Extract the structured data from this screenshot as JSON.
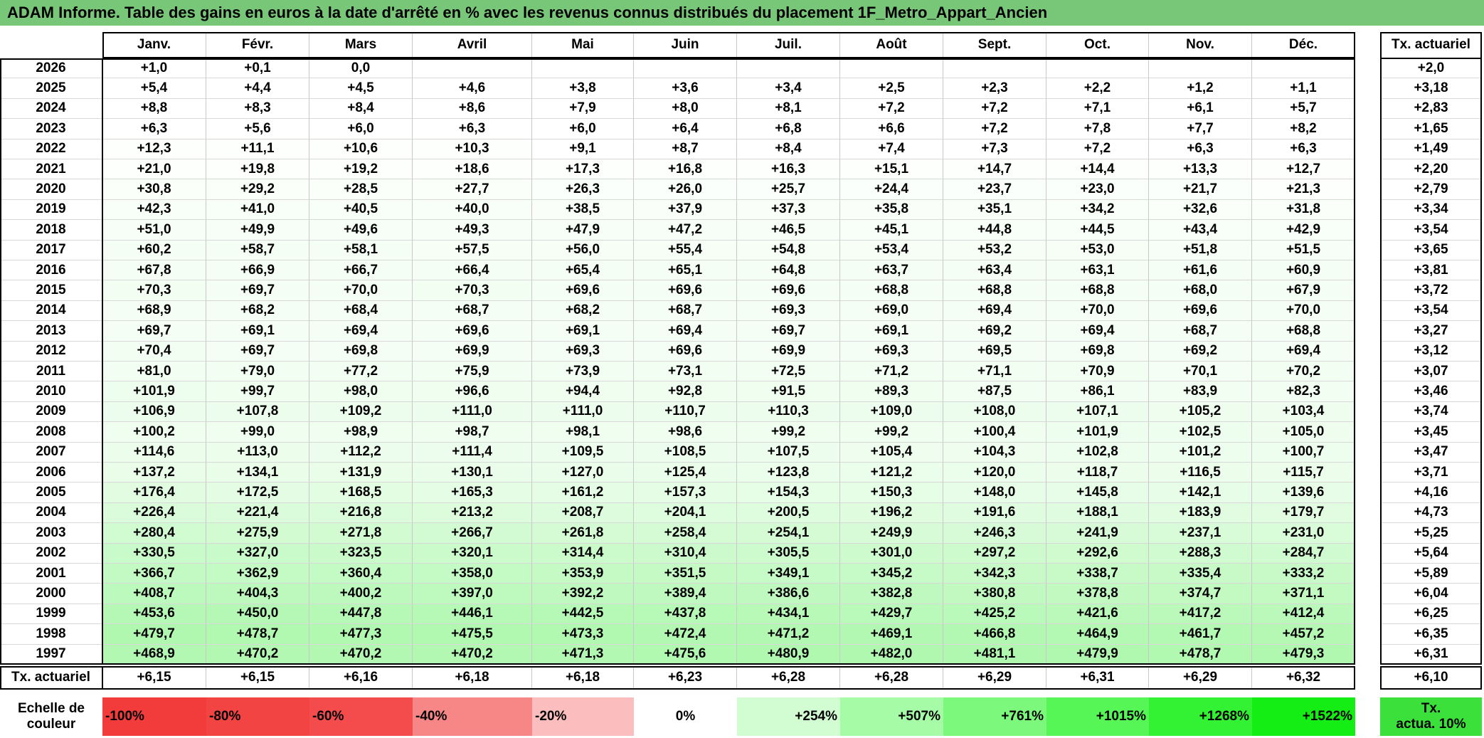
{
  "title": "ADAM Informe. Table des gains en euros à la date d'arrêté en % avec les revenus connus distribués du placement 1F_Metro_Appart_Ancien",
  "table": {
    "months": [
      "Janv.",
      "Févr.",
      "Mars",
      "Avril",
      "Mai",
      "Juin",
      "Juil.",
      "Août",
      "Sept.",
      "Oct.",
      "Nov.",
      "Déc."
    ],
    "tx_header": "Tx. actuariel",
    "rows": [
      {
        "year": "2026",
        "values": [
          "+1,0",
          "+0,1",
          "0,0"
        ],
        "tx": "+2,0"
      },
      {
        "year": "2025",
        "values": [
          "+5,4",
          "+4,4",
          "+4,5",
          "+4,6",
          "+3,8",
          "+3,6",
          "+3,4",
          "+2,5",
          "+2,3",
          "+2,2",
          "+1,2",
          "+1,1"
        ],
        "tx": "+3,18"
      },
      {
        "year": "2024",
        "values": [
          "+8,8",
          "+8,3",
          "+8,4",
          "+8,6",
          "+7,9",
          "+8,0",
          "+8,1",
          "+7,2",
          "+7,2",
          "+7,1",
          "+6,1",
          "+5,7"
        ],
        "tx": "+2,83"
      },
      {
        "year": "2023",
        "values": [
          "+6,3",
          "+5,6",
          "+6,0",
          "+6,3",
          "+6,0",
          "+6,4",
          "+6,8",
          "+6,6",
          "+7,2",
          "+7,8",
          "+7,7",
          "+8,2"
        ],
        "tx": "+1,65"
      },
      {
        "year": "2022",
        "values": [
          "+12,3",
          "+11,1",
          "+10,6",
          "+10,3",
          "+9,1",
          "+8,7",
          "+8,4",
          "+7,4",
          "+7,3",
          "+7,2",
          "+6,3",
          "+6,3"
        ],
        "tx": "+1,49"
      },
      {
        "year": "2021",
        "values": [
          "+21,0",
          "+19,8",
          "+19,2",
          "+18,6",
          "+17,3",
          "+16,8",
          "+16,3",
          "+15,1",
          "+14,7",
          "+14,4",
          "+13,3",
          "+12,7"
        ],
        "tx": "+2,20"
      },
      {
        "year": "2020",
        "values": [
          "+30,8",
          "+29,2",
          "+28,5",
          "+27,7",
          "+26,3",
          "+26,0",
          "+25,7",
          "+24,4",
          "+23,7",
          "+23,0",
          "+21,7",
          "+21,3"
        ],
        "tx": "+2,79"
      },
      {
        "year": "2019",
        "values": [
          "+42,3",
          "+41,0",
          "+40,5",
          "+40,0",
          "+38,5",
          "+37,9",
          "+37,3",
          "+35,8",
          "+35,1",
          "+34,2",
          "+32,6",
          "+31,8"
        ],
        "tx": "+3,34"
      },
      {
        "year": "2018",
        "values": [
          "+51,0",
          "+49,9",
          "+49,6",
          "+49,3",
          "+47,9",
          "+47,2",
          "+46,5",
          "+45,1",
          "+44,8",
          "+44,5",
          "+43,4",
          "+42,9"
        ],
        "tx": "+3,54"
      },
      {
        "year": "2017",
        "values": [
          "+60,2",
          "+58,7",
          "+58,1",
          "+57,5",
          "+56,0",
          "+55,4",
          "+54,8",
          "+53,4",
          "+53,2",
          "+53,0",
          "+51,8",
          "+51,5"
        ],
        "tx": "+3,65"
      },
      {
        "year": "2016",
        "values": [
          "+67,8",
          "+66,9",
          "+66,7",
          "+66,4",
          "+65,4",
          "+65,1",
          "+64,8",
          "+63,7",
          "+63,4",
          "+63,1",
          "+61,6",
          "+60,9"
        ],
        "tx": "+3,81"
      },
      {
        "year": "2015",
        "values": [
          "+70,3",
          "+69,7",
          "+70,0",
          "+70,3",
          "+69,6",
          "+69,6",
          "+69,6",
          "+68,8",
          "+68,8",
          "+68,8",
          "+68,0",
          "+67,9"
        ],
        "tx": "+3,72"
      },
      {
        "year": "2014",
        "values": [
          "+68,9",
          "+68,2",
          "+68,4",
          "+68,7",
          "+68,2",
          "+68,7",
          "+69,3",
          "+69,0",
          "+69,4",
          "+70,0",
          "+69,6",
          "+70,0"
        ],
        "tx": "+3,54"
      },
      {
        "year": "2013",
        "values": [
          "+69,7",
          "+69,1",
          "+69,4",
          "+69,6",
          "+69,1",
          "+69,4",
          "+69,7",
          "+69,1",
          "+69,2",
          "+69,4",
          "+68,7",
          "+68,8"
        ],
        "tx": "+3,27"
      },
      {
        "year": "2012",
        "values": [
          "+70,4",
          "+69,7",
          "+69,8",
          "+69,9",
          "+69,3",
          "+69,6",
          "+69,9",
          "+69,3",
          "+69,5",
          "+69,8",
          "+69,2",
          "+69,4"
        ],
        "tx": "+3,12"
      },
      {
        "year": "2011",
        "values": [
          "+81,0",
          "+79,0",
          "+77,2",
          "+75,9",
          "+73,9",
          "+73,1",
          "+72,5",
          "+71,2",
          "+71,1",
          "+70,9",
          "+70,1",
          "+70,2"
        ],
        "tx": "+3,07"
      },
      {
        "year": "2010",
        "values": [
          "+101,9",
          "+99,7",
          "+98,0",
          "+96,6",
          "+94,4",
          "+92,8",
          "+91,5",
          "+89,3",
          "+87,5",
          "+86,1",
          "+83,9",
          "+82,3"
        ],
        "tx": "+3,46"
      },
      {
        "year": "2009",
        "values": [
          "+106,9",
          "+107,8",
          "+109,2",
          "+111,0",
          "+111,0",
          "+110,7",
          "+110,3",
          "+109,0",
          "+108,0",
          "+107,1",
          "+105,2",
          "+103,4"
        ],
        "tx": "+3,74"
      },
      {
        "year": "2008",
        "values": [
          "+100,2",
          "+99,0",
          "+98,9",
          "+98,7",
          "+98,1",
          "+98,6",
          "+99,2",
          "+99,2",
          "+100,4",
          "+101,9",
          "+102,5",
          "+105,0"
        ],
        "tx": "+3,45"
      },
      {
        "year": "2007",
        "values": [
          "+114,6",
          "+113,0",
          "+112,2",
          "+111,4",
          "+109,5",
          "+108,5",
          "+107,5",
          "+105,4",
          "+104,3",
          "+102,8",
          "+101,2",
          "+100,7"
        ],
        "tx": "+3,47"
      },
      {
        "year": "2006",
        "values": [
          "+137,2",
          "+134,1",
          "+131,9",
          "+130,1",
          "+127,0",
          "+125,4",
          "+123,8",
          "+121,2",
          "+120,0",
          "+118,7",
          "+116,5",
          "+115,7"
        ],
        "tx": "+3,71"
      },
      {
        "year": "2005",
        "values": [
          "+176,4",
          "+172,5",
          "+168,5",
          "+165,3",
          "+161,2",
          "+157,3",
          "+154,3",
          "+150,3",
          "+148,0",
          "+145,8",
          "+142,1",
          "+139,6"
        ],
        "tx": "+4,16"
      },
      {
        "year": "2004",
        "values": [
          "+226,4",
          "+221,4",
          "+216,8",
          "+213,2",
          "+208,7",
          "+204,1",
          "+200,5",
          "+196,2",
          "+191,6",
          "+188,1",
          "+183,9",
          "+179,7"
        ],
        "tx": "+4,73"
      },
      {
        "year": "2003",
        "values": [
          "+280,4",
          "+275,9",
          "+271,8",
          "+266,7",
          "+261,8",
          "+258,4",
          "+254,1",
          "+249,9",
          "+246,3",
          "+241,9",
          "+237,1",
          "+231,0"
        ],
        "tx": "+5,25"
      },
      {
        "year": "2002",
        "values": [
          "+330,5",
          "+327,0",
          "+323,5",
          "+320,1",
          "+314,4",
          "+310,4",
          "+305,5",
          "+301,0",
          "+297,2",
          "+292,6",
          "+288,3",
          "+284,7"
        ],
        "tx": "+5,64"
      },
      {
        "year": "2001",
        "values": [
          "+366,7",
          "+362,9",
          "+360,4",
          "+358,0",
          "+353,9",
          "+351,5",
          "+349,1",
          "+345,2",
          "+342,3",
          "+338,7",
          "+335,4",
          "+333,2"
        ],
        "tx": "+5,89"
      },
      {
        "year": "2000",
        "values": [
          "+408,7",
          "+404,3",
          "+400,2",
          "+397,0",
          "+392,2",
          "+389,4",
          "+386,6",
          "+382,8",
          "+380,8",
          "+378,8",
          "+374,7",
          "+371,1"
        ],
        "tx": "+6,04"
      },
      {
        "year": "1999",
        "values": [
          "+453,6",
          "+450,0",
          "+447,8",
          "+446,1",
          "+442,5",
          "+437,8",
          "+434,1",
          "+429,7",
          "+425,2",
          "+421,6",
          "+417,2",
          "+412,4"
        ],
        "tx": "+6,25"
      },
      {
        "year": "1998",
        "values": [
          "+479,7",
          "+478,7",
          "+477,3",
          "+475,5",
          "+473,3",
          "+472,4",
          "+471,2",
          "+469,1",
          "+466,8",
          "+464,9",
          "+461,7",
          "+457,2"
        ],
        "tx": "+6,35"
      },
      {
        "year": "1997",
        "values": [
          "+468,9",
          "+470,2",
          "+470,2",
          "+470,2",
          "+471,3",
          "+475,6",
          "+480,9",
          "+482,0",
          "+481,1",
          "+479,9",
          "+478,7",
          "+479,3"
        ],
        "tx": "+6,31"
      }
    ],
    "footer": {
      "label": "Tx. actuariel",
      "values": [
        "+6,15",
        "+6,15",
        "+6,16",
        "+6,18",
        "+6,18",
        "+6,23",
        "+6,28",
        "+6,28",
        "+6,29",
        "+6,31",
        "+6,29",
        "+6,32"
      ],
      "tx": "+6,10"
    }
  },
  "scale": {
    "label": [
      "Echelle de",
      "couleur"
    ],
    "items": [
      {
        "label": "-100%",
        "color": "#f23b3b"
      },
      {
        "label": "-80%",
        "color": "#f34444"
      },
      {
        "label": "-60%",
        "color": "#f44c4c"
      },
      {
        "label": "-40%",
        "color": "#f78686"
      },
      {
        "label": "-20%",
        "color": "#fbbdbd"
      },
      {
        "label": "0%",
        "color": "#ffffff"
      },
      {
        "label": "+254%",
        "color": "#d2fdd2"
      },
      {
        "label": "+507%",
        "color": "#a6fba6"
      },
      {
        "label": "+761%",
        "color": "#7cf87c"
      },
      {
        "label": "+1015%",
        "color": "#55f655"
      },
      {
        "label": "+1268%",
        "color": "#33f233"
      },
      {
        "label": "+1522%",
        "color": "#14ee14"
      }
    ],
    "total": {
      "label": [
        "Tx.",
        "actua. 10%"
      ],
      "color": "#3be03b"
    }
  }
}
